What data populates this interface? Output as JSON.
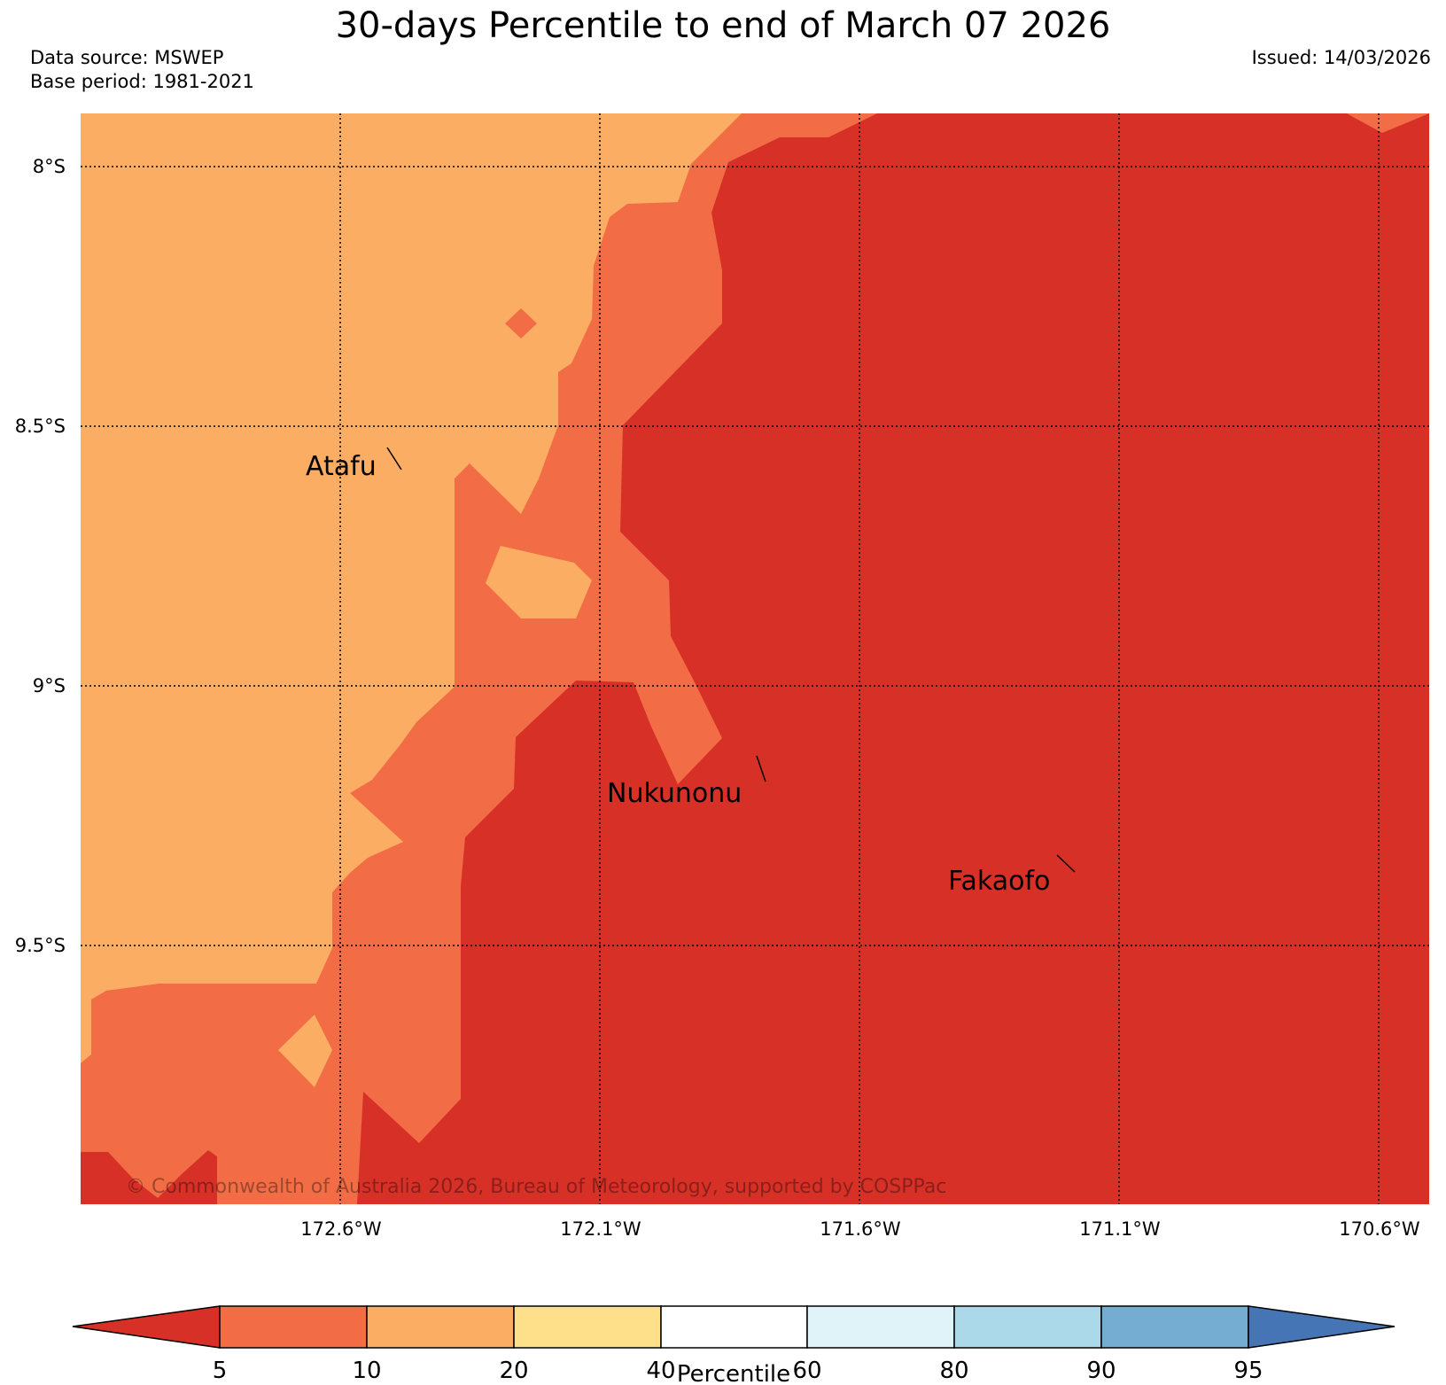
{
  "header": {
    "title": "30-days Percentile to end of March 07 2026",
    "data_source": "Data source: MSWEP",
    "base_period": "Base period: 1981-2021",
    "issued": "Issued: 14/03/2026"
  },
  "map": {
    "lat_labels": [
      "8°S",
      "8.5°S",
      "9°S",
      "9.5°S"
    ],
    "lon_labels": [
      "172.6°W",
      "172.1°W",
      "171.6°W",
      "171.1°W",
      "170.6°W"
    ],
    "places": [
      {
        "name": "Atafu"
      },
      {
        "name": "Nukunonu"
      },
      {
        "name": "Fakaofo"
      }
    ],
    "copyright": "© Commonwealth of Australia 2026, Bureau of Meteorology, supported by COSPPac",
    "colors": {
      "below_5": "#d73027",
      "p5_10": "#f26d45",
      "p10_20": "#fbad63",
      "p20_40": "#fee08b",
      "p40_60": "#ffffff",
      "p60_80": "#e0f3f8",
      "p80_90": "#abd9e9",
      "p90_95": "#74add1",
      "above_95": "#4575b4"
    }
  },
  "colorbar": {
    "label": "Percentile",
    "ticks": [
      "5",
      "10",
      "20",
      "40",
      "60",
      "80",
      "90",
      "95"
    ]
  }
}
